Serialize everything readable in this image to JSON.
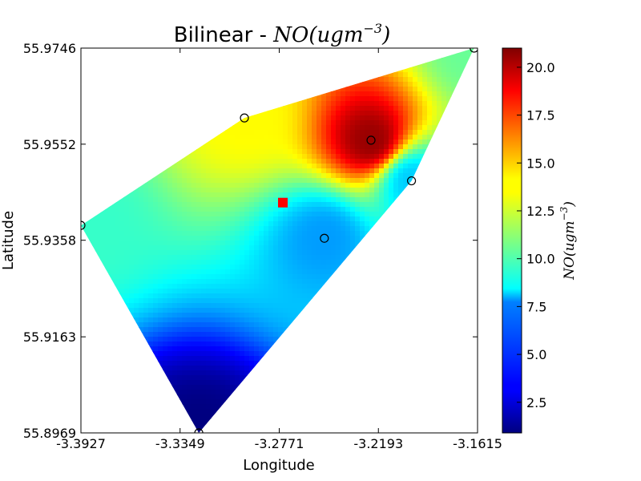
{
  "chart_data": {
    "type": "heatmap",
    "title_prefix": "Bilinear - ",
    "title_math": "NO(ugm",
    "title_math_exp": "−3",
    "title_math_close": ")",
    "xlabel": "Longitude",
    "ylabel": "Latitude",
    "xlim": [
      -3.3927,
      -3.1615
    ],
    "ylim": [
      55.8969,
      55.9746
    ],
    "x_ticks": [
      -3.3927,
      -3.3349,
      -3.2771,
      -3.2193,
      -3.1615
    ],
    "x_tick_labels": [
      "-3.3927",
      "-3.3349",
      "-3.2771",
      "-3.2193",
      "-3.1615"
    ],
    "y_ticks": [
      55.8969,
      55.9163,
      55.9358,
      55.9552,
      55.9746
    ],
    "y_tick_labels": [
      "55.8969",
      "55.9163",
      "55.9358",
      "55.9552",
      "55.9746"
    ],
    "colormap": "jet",
    "colorbar": {
      "label_math": "NO(ugm",
      "label_exp": "−3",
      "label_close": ")",
      "range": [
        0.9,
        21.0
      ],
      "ticks": [
        2.5,
        5.0,
        7.5,
        10.0,
        12.5,
        15.0,
        17.5,
        20.0
      ],
      "tick_labels": [
        "2.5",
        "5.0",
        "7.5",
        "10.0",
        "12.5",
        "15.0",
        "17.5",
        "20.0"
      ]
    },
    "stations": [
      {
        "lon": -3.3927,
        "lat": 55.9388,
        "value": 9.5
      },
      {
        "lon": -3.2974,
        "lat": 55.9605,
        "value": 13.5
      },
      {
        "lon": -3.2236,
        "lat": 55.956,
        "value": 20.5
      },
      {
        "lon": -3.2,
        "lat": 55.9478,
        "value": 7.5
      },
      {
        "lon": -3.2508,
        "lat": 55.9362,
        "value": 6.5
      },
      {
        "lon": -3.1635,
        "lat": 55.9746,
        "value": 10.5
      },
      {
        "lon": -3.324,
        "lat": 55.8969,
        "value": 0.9
      }
    ],
    "target_point": {
      "lon": -3.275,
      "lat": 55.9434
    },
    "marker_colors": {
      "station_edge": "#000000",
      "target": "#ff0000"
    }
  }
}
